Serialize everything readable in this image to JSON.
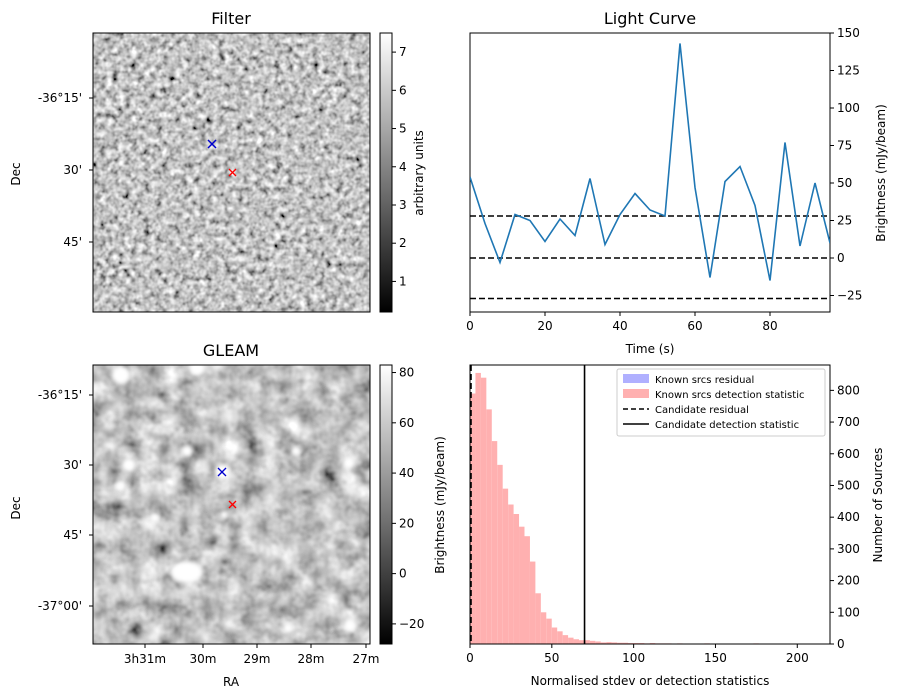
{
  "chart_data": [
    {
      "type": "image",
      "title": "Filter",
      "ylabel": "Dec",
      "ytick_labels": [
        "-36°15'",
        "30'",
        "45'"
      ],
      "colorbar": {
        "label": "arbitrary units",
        "ticks": [
          1,
          2,
          3,
          4,
          5,
          6,
          7
        ],
        "range": [
          0.2,
          7.5
        ]
      },
      "markers": [
        {
          "name": "known source",
          "symbol": "x",
          "color": "#0000cc"
        },
        {
          "name": "candidate",
          "symbol": "x",
          "color": "#ff0000"
        }
      ]
    },
    {
      "type": "line",
      "title": "Light Curve",
      "xlabel": "Time (s)",
      "ylabel": "Brightness (mJy/beam)",
      "xlim": [
        0,
        96
      ],
      "ylim": [
        -36,
        150
      ],
      "xticks": [
        0,
        20,
        40,
        60,
        80
      ],
      "yticks": [
        -25,
        0,
        25,
        50,
        75,
        100,
        125,
        150
      ],
      "series": [
        {
          "name": "light curve",
          "color": "#1f77b4",
          "x": [
            0,
            4,
            8,
            12,
            16,
            20,
            24,
            28,
            32,
            36,
            40,
            44,
            48,
            52,
            56,
            60,
            64,
            68,
            72,
            76,
            80,
            84,
            88,
            92,
            96
          ],
          "y": [
            54,
            23,
            -3,
            29,
            25,
            11,
            26,
            15,
            53,
            9,
            29,
            43,
            32,
            28,
            143,
            47,
            -13,
            51,
            61,
            35,
            -15,
            77,
            8,
            50,
            10
          ]
        }
      ],
      "hlines": [
        {
          "y": 28,
          "style": "dashed",
          "color": "#000000"
        },
        {
          "y": 0,
          "style": "dashed",
          "color": "#000000"
        },
        {
          "y": -27,
          "style": "dashed",
          "color": "#000000"
        }
      ]
    },
    {
      "type": "image",
      "title": "GLEAM",
      "xlabel": "RA",
      "ylabel": "Dec",
      "ytick_labels": [
        "-36°15'",
        "30'",
        "45'",
        "-37°00'"
      ],
      "xtick_labels": [
        "3h31m",
        "30m",
        "29m",
        "28m",
        "27m"
      ],
      "colorbar": {
        "label": "",
        "ticks": [
          -20,
          0,
          20,
          40,
          60,
          80
        ],
        "range": [
          -28,
          83
        ]
      },
      "markers": [
        {
          "name": "known source",
          "symbol": "x",
          "color": "#0000cc"
        },
        {
          "name": "candidate",
          "symbol": "x",
          "color": "#ff0000"
        }
      ]
    },
    {
      "type": "histogram",
      "xlabel": "Normalised stdev or detection statistics",
      "ylabel_left": "Brightness (mJy/beam)",
      "ylabel_right": "Number of Sources",
      "xlim": [
        0,
        220
      ],
      "ylim": [
        0,
        880
      ],
      "xticks": [
        0,
        50,
        100,
        150,
        200
      ],
      "yticks": [
        0,
        100,
        200,
        300,
        400,
        500,
        600,
        700,
        800
      ],
      "bin_width": 3.33,
      "series": [
        {
          "name": "Known srcs residual",
          "color": "#b0b0ff",
          "values": []
        },
        {
          "name": "Known srcs detection statistic",
          "color": "#ffb0b0",
          "bin_start": 0,
          "values": [
            790,
            855,
            840,
            740,
            640,
            565,
            490,
            440,
            410,
            370,
            340,
            260,
            160,
            100,
            80,
            52,
            40,
            28,
            20,
            15,
            12,
            12,
            10,
            8,
            5,
            6,
            5,
            4,
            4,
            3,
            3,
            3,
            2,
            3,
            2,
            2,
            2,
            1,
            2,
            1,
            1,
            1,
            1,
            2,
            1,
            1,
            1,
            1,
            1,
            1,
            1,
            1,
            2,
            1,
            1,
            1,
            1,
            1,
            1,
            1,
            1,
            1,
            1,
            1
          ]
        }
      ],
      "vlines": [
        {
          "name": "Candidate residual",
          "x": 0,
          "style": "dashed",
          "color": "#000000"
        },
        {
          "name": "Candidate detection statistic",
          "x": 70,
          "style": "solid",
          "color": "#000000"
        }
      ]
    }
  ]
}
